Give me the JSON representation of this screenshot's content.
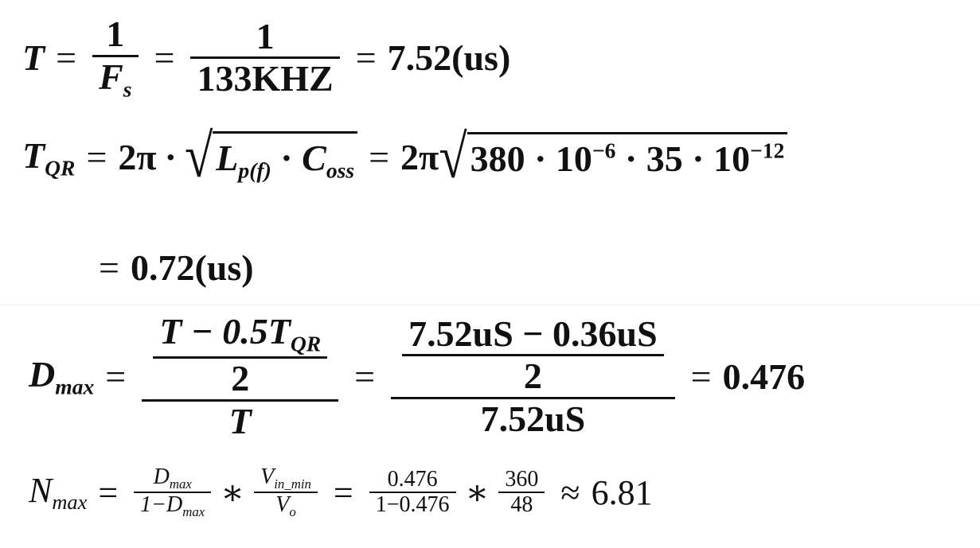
{
  "eq1": {
    "lhs": "T",
    "eq": "=",
    "f1_num": "1",
    "f1_den": "F",
    "f1_den_sub": "s",
    "f2_num": "1",
    "f2_den": "133KHZ",
    "result": "7.52(us)"
  },
  "eq2": {
    "lhs": "T",
    "lhs_sub": "QR",
    "eq": "=",
    "two_pi": "2π",
    "dot": "·",
    "L": "L",
    "L_sub": "p(f)",
    "C": "C",
    "C_sub": "oss",
    "rhs_a": "380 · 10",
    "rhs_a_exp": "−6",
    "rhs_b": " · 35 · 10",
    "rhs_b_exp": "−12"
  },
  "eq3": {
    "eq": "=",
    "result": "0.72(us)"
  },
  "eq4": {
    "lhs": "D",
    "lhs_sub": "max",
    "eq": "=",
    "n1_num": "T − 0.5T",
    "n1_num_sub": "QR",
    "n1_den": "2",
    "d1": "T",
    "n2_num": "7.52uS − 0.36uS",
    "n2_den": "2",
    "d2": "7.52uS",
    "result": "0.476"
  },
  "eq5": {
    "lhs": "N",
    "lhs_sub": "max",
    "eq": "=",
    "f1_num": "D",
    "f1_num_sub": "max",
    "f1_den": "1−D",
    "f1_den_sub": "max",
    "times": "∗",
    "f2_num": "V",
    "f2_num_sub": "in_min",
    "f2_den": "V",
    "f2_den_sub": "o",
    "f3_num": "0.476",
    "f3_den": "1−0.476",
    "f4_num": "360",
    "f4_den": "48",
    "approx": "≈",
    "result": "6.81"
  }
}
